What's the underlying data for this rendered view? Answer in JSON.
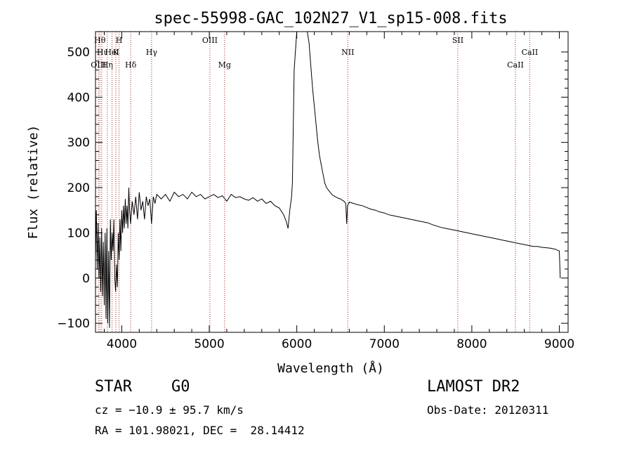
{
  "chart_data": {
    "type": "line",
    "title": "spec-55998-GAC_102N27_V1_sp15-008.fits",
    "xlabel": "Wavelength (Å)",
    "ylabel": "Flux (relative)",
    "xlim": [
      3700,
      9100
    ],
    "ylim": [
      -120,
      545
    ],
    "xticks": [
      4000,
      5000,
      6000,
      7000,
      8000,
      9000
    ],
    "yticks": [
      -100,
      0,
      100,
      200,
      300,
      400,
      500
    ],
    "grid": false,
    "series": [
      {
        "values": [
          [
            3700,
            40
          ],
          [
            3710,
            150
          ],
          [
            3720,
            20
          ],
          [
            3730,
            120
          ],
          [
            3740,
            0
          ],
          [
            3750,
            90
          ],
          [
            3760,
            -30
          ],
          [
            3770,
            110
          ],
          [
            3780,
            -40
          ],
          [
            3790,
            80
          ],
          [
            3800,
            -60
          ],
          [
            3810,
            100
          ],
          [
            3820,
            -90
          ],
          [
            3830,
            110
          ],
          [
            3840,
            -100
          ],
          [
            3850,
            60
          ],
          [
            3860,
            -110
          ],
          [
            3870,
            130
          ],
          [
            3880,
            40
          ],
          [
            3890,
            100
          ],
          [
            3900,
            60
          ],
          [
            3910,
            130
          ],
          [
            3920,
            0
          ],
          [
            3930,
            -30
          ],
          [
            3940,
            30
          ],
          [
            3950,
            -20
          ],
          [
            3960,
            100
          ],
          [
            3970,
            40
          ],
          [
            3980,
            130
          ],
          [
            3990,
            60
          ],
          [
            4000,
            150
          ],
          [
            4010,
            100
          ],
          [
            4020,
            160
          ],
          [
            4030,
            110
          ],
          [
            4040,
            175
          ],
          [
            4050,
            120
          ],
          [
            4060,
            160
          ],
          [
            4070,
            110
          ],
          [
            4080,
            200
          ],
          [
            4090,
            150
          ],
          [
            4100,
            120
          ],
          [
            4120,
            170
          ],
          [
            4140,
            140
          ],
          [
            4160,
            180
          ],
          [
            4180,
            130
          ],
          [
            4200,
            190
          ],
          [
            4220,
            150
          ],
          [
            4240,
            170
          ],
          [
            4260,
            130
          ],
          [
            4280,
            180
          ],
          [
            4300,
            160
          ],
          [
            4320,
            175
          ],
          [
            4340,
            120
          ],
          [
            4360,
            180
          ],
          [
            4380,
            165
          ],
          [
            4400,
            185
          ],
          [
            4450,
            175
          ],
          [
            4500,
            185
          ],
          [
            4550,
            170
          ],
          [
            4600,
            190
          ],
          [
            4650,
            180
          ],
          [
            4700,
            185
          ],
          [
            4750,
            175
          ],
          [
            4800,
            190
          ],
          [
            4850,
            180
          ],
          [
            4900,
            185
          ],
          [
            4950,
            175
          ],
          [
            5000,
            180
          ],
          [
            5050,
            185
          ],
          [
            5100,
            178
          ],
          [
            5150,
            182
          ],
          [
            5200,
            170
          ],
          [
            5250,
            185
          ],
          [
            5300,
            178
          ],
          [
            5350,
            180
          ],
          [
            5400,
            175
          ],
          [
            5450,
            172
          ],
          [
            5500,
            178
          ],
          [
            5550,
            170
          ],
          [
            5600,
            175
          ],
          [
            5650,
            165
          ],
          [
            5700,
            170
          ],
          [
            5750,
            160
          ],
          [
            5800,
            155
          ],
          [
            5850,
            140
          ],
          [
            5880,
            125
          ],
          [
            5900,
            110
          ],
          [
            5920,
            150
          ],
          [
            5940,
            180
          ],
          [
            5950,
            210
          ],
          [
            5970,
            460
          ],
          [
            6000,
            545
          ],
          [
            6050,
            545
          ],
          [
            6100,
            545
          ],
          [
            6120,
            545
          ],
          [
            6140,
            520
          ],
          [
            6160,
            470
          ],
          [
            6180,
            420
          ],
          [
            6200,
            380
          ],
          [
            6220,
            340
          ],
          [
            6240,
            300
          ],
          [
            6260,
            270
          ],
          [
            6280,
            250
          ],
          [
            6300,
            230
          ],
          [
            6320,
            210
          ],
          [
            6340,
            200
          ],
          [
            6360,
            195
          ],
          [
            6380,
            190
          ],
          [
            6400,
            185
          ],
          [
            6420,
            182
          ],
          [
            6440,
            180
          ],
          [
            6460,
            178
          ],
          [
            6480,
            176
          ],
          [
            6500,
            175
          ],
          [
            6520,
            172
          ],
          [
            6540,
            170
          ],
          [
            6560,
            165
          ],
          [
            6570,
            120
          ],
          [
            6580,
            160
          ],
          [
            6600,
            168
          ],
          [
            6650,
            165
          ],
          [
            6700,
            162
          ],
          [
            6750,
            160
          ],
          [
            6800,
            156
          ],
          [
            6850,
            152
          ],
          [
            6900,
            150
          ],
          [
            6950,
            146
          ],
          [
            7000,
            144
          ],
          [
            7050,
            140
          ],
          [
            7100,
            138
          ],
          [
            7150,
            136
          ],
          [
            7200,
            134
          ],
          [
            7250,
            132
          ],
          [
            7300,
            130
          ],
          [
            7350,
            128
          ],
          [
            7400,
            126
          ],
          [
            7450,
            124
          ],
          [
            7500,
            122
          ],
          [
            7550,
            118
          ],
          [
            7600,
            115
          ],
          [
            7650,
            112
          ],
          [
            7700,
            110
          ],
          [
            7750,
            108
          ],
          [
            7800,
            106
          ],
          [
            7850,
            104
          ],
          [
            7900,
            102
          ],
          [
            7950,
            100
          ],
          [
            8000,
            98
          ],
          [
            8050,
            96
          ],
          [
            8100,
            94
          ],
          [
            8150,
            92
          ],
          [
            8200,
            90
          ],
          [
            8250,
            88
          ],
          [
            8300,
            86
          ],
          [
            8350,
            84
          ],
          [
            8400,
            82
          ],
          [
            8450,
            80
          ],
          [
            8500,
            78
          ],
          [
            8550,
            76
          ],
          [
            8600,
            74
          ],
          [
            8650,
            72
          ],
          [
            8700,
            70
          ],
          [
            8750,
            70
          ],
          [
            8800,
            68
          ],
          [
            8850,
            67
          ],
          [
            8900,
            66
          ],
          [
            8950,
            64
          ],
          [
            9000,
            60
          ],
          [
            9010,
            0
          ]
        ]
      }
    ],
    "line_markers": [
      {
        "wavelength": 3734,
        "label": "OIII",
        "row": 3
      },
      {
        "wavelength": 3750,
        "label": "Hθ",
        "row": 1
      },
      {
        "wavelength": 3771,
        "label": "Hι",
        "row": 2
      },
      {
        "wavelength": 3835,
        "label": "Hη",
        "row": 3
      },
      {
        "wavelength": 3889,
        "label": "HeI",
        "row": 2
      },
      {
        "wavelength": 3933,
        "label": "K",
        "row": 2
      },
      {
        "wavelength": 3969,
        "label": "H",
        "row": 1
      },
      {
        "wavelength": 4102,
        "label": "Hδ",
        "row": 3
      },
      {
        "wavelength": 4341,
        "label": "Hγ",
        "row": 2
      },
      {
        "wavelength": 5007,
        "label": "OIII",
        "row": 1
      },
      {
        "wavelength": 5175,
        "label": "Mg",
        "row": 3
      },
      {
        "wavelength": 6583,
        "label": "NII",
        "row": 2
      },
      {
        "wavelength": 7840,
        "label": "SII",
        "row": 1
      },
      {
        "wavelength": 8498,
        "label": "CaII",
        "row": 3
      },
      {
        "wavelength": 8662,
        "label": "CaII",
        "row": 2
      }
    ]
  },
  "info": {
    "class": "STAR",
    "subclass": "G0",
    "survey": "LAMOST DR2",
    "cz": "cz = −10.9 ± 95.7 km/s",
    "obs_date": "Obs-Date: 20120311",
    "radec": "RA = 101.98021, DEC =  28.14412"
  }
}
